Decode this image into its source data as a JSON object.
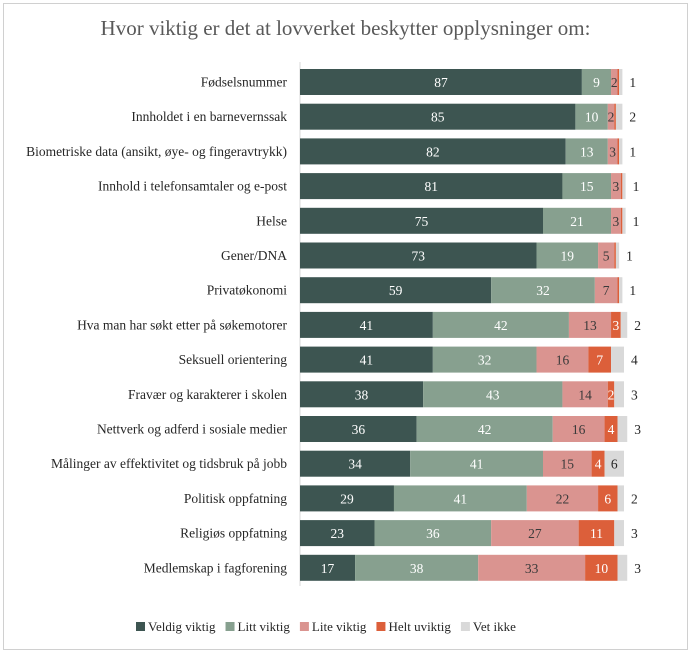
{
  "chart_data": {
    "type": "bar",
    "orientation": "horizontal",
    "stacked": true,
    "title": "Hvor viktig er det at lovverket beskytter opplysninger om:",
    "xlim": [
      0,
      100
    ],
    "grid": false,
    "legend": "bottom",
    "categories": [
      "Fødselsnummer",
      "Innholdet i en barnevernssak",
      "Biometriske data (ansikt, øye- og fingeravtrykk)",
      "Innhold i telefonsamtaler og e-post",
      "Helse",
      "Gener/DNA",
      "Privatøkonomi",
      "Hva man har søkt etter på søkemotorer",
      "Seksuell orientering",
      "Fravær og karakterer i skolen",
      "Nettverk og adferd i sosiale medier",
      "Målinger av effektivitet og tidsbruk på jobb",
      "Politisk oppfatning",
      "Religiøs oppfatning",
      "Medlemskap i fagforening"
    ],
    "series": [
      {
        "name": "Veldig viktig",
        "color": "#3d5551",
        "values": [
          87,
          85,
          82,
          81,
          75,
          73,
          59,
          41,
          41,
          38,
          36,
          34,
          29,
          23,
          17
        ]
      },
      {
        "name": "Litt viktig",
        "color": "#87a08f",
        "values": [
          9,
          10,
          13,
          15,
          21,
          19,
          32,
          42,
          32,
          43,
          42,
          41,
          41,
          36,
          38
        ]
      },
      {
        "name": "Lite viktig",
        "color": "#da9490",
        "values": [
          2,
          2,
          3,
          3,
          3,
          5,
          7,
          13,
          16,
          14,
          16,
          15,
          22,
          27,
          33
        ]
      },
      {
        "name": "Helt uviktig",
        "color": "#dc5f3a",
        "values": [
          0.5,
          0.5,
          0.5,
          0.5,
          0.5,
          0.5,
          0.5,
          3,
          7,
          2,
          4,
          4,
          6,
          11,
          10
        ]
      },
      {
        "name": "Vet ikke",
        "color": "#d9d9d9",
        "values": [
          1,
          2,
          1,
          1,
          1,
          1,
          1,
          2,
          4,
          3,
          3,
          6,
          2,
          3,
          3
        ]
      }
    ]
  }
}
